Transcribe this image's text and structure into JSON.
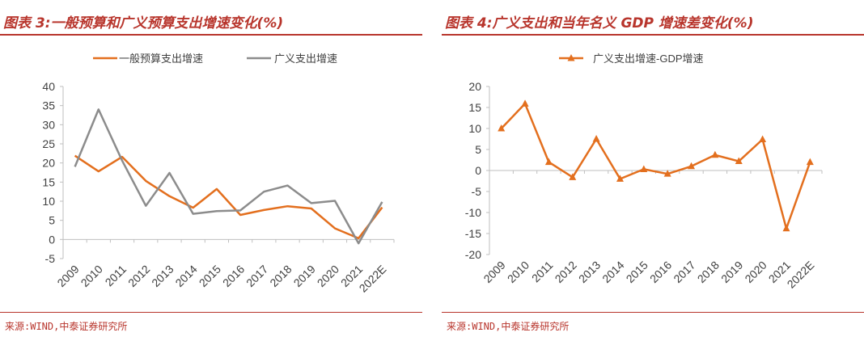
{
  "left": {
    "title": "图表 3:一般预算和广义预算支出增速变化(%)",
    "source": "来源:WIND,中泰证券研究所"
  },
  "right": {
    "title": "图表 4:广义支出和当年名义 GDP 增速差变化(%)",
    "source": "来源:WIND,中泰证券研究所"
  },
  "chart_data": [
    {
      "type": "line",
      "title": "",
      "categories": [
        "2009",
        "2010",
        "2011",
        "2012",
        "2013",
        "2014",
        "2015",
        "2016",
        "2017",
        "2018",
        "2019",
        "2020",
        "2021",
        "2022E"
      ],
      "series": [
        {
          "name": "一般预算支出增速",
          "color": "#e36f1e",
          "values": [
            21.9,
            17.8,
            21.6,
            15.3,
            11.3,
            8.3,
            13.2,
            6.4,
            7.7,
            8.7,
            8.1,
            2.9,
            0.3,
            8.4
          ]
        },
        {
          "name": "广义支出增速",
          "color": "#8c8c8c",
          "values": [
            19.0,
            34.0,
            20.6,
            8.8,
            17.4,
            6.7,
            7.4,
            7.6,
            12.5,
            14.1,
            9.5,
            10.1,
            -1.0,
            9.8
          ]
        }
      ],
      "ylim": [
        -5,
        40
      ],
      "yticks": [
        "-5",
        "0",
        "5",
        "10",
        "15",
        "20",
        "25",
        "30",
        "35",
        "40"
      ],
      "legend": "top",
      "grid": false
    },
    {
      "type": "line",
      "title": "",
      "categories": [
        "2009",
        "2010",
        "2011",
        "2012",
        "2013",
        "2014",
        "2015",
        "2016",
        "2017",
        "2018",
        "2019",
        "2020",
        "2021",
        "2022E"
      ],
      "series": [
        {
          "name": "广义支出增速-GDP增速",
          "color": "#e36f1e",
          "marker": "triangle",
          "values": [
            10.0,
            15.9,
            2.0,
            -1.6,
            7.5,
            -2.0,
            0.3,
            -0.8,
            1.0,
            3.7,
            2.2,
            7.4,
            -13.8,
            2.0
          ]
        }
      ],
      "ylim": [
        -20,
        20
      ],
      "yticks": [
        "-20",
        "-15",
        "-10",
        "-5",
        "0",
        "5",
        "10",
        "15",
        "20"
      ],
      "legend": "top",
      "grid": false
    }
  ]
}
